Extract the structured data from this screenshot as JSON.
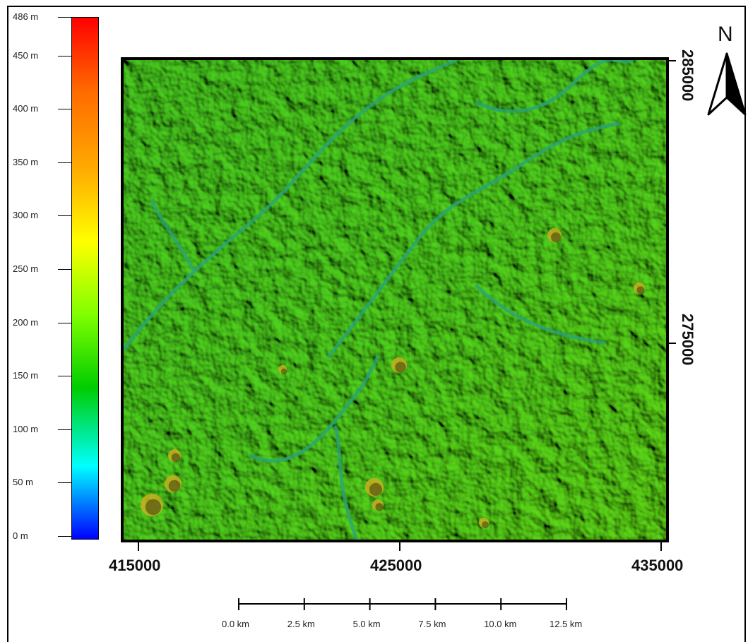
{
  "legend": {
    "labels": [
      "486 m",
      "450 m",
      "400 m",
      "350 m",
      "300 m",
      "250 m",
      "200 m",
      "150 m",
      "100 m",
      "50 m",
      "0 m"
    ],
    "colors": [
      "#ff0000",
      "#ff6a00",
      "#ffaa00",
      "#ffff00",
      "#80ff00",
      "#00cc00",
      "#00ffff",
      "#0000ff"
    ]
  },
  "axes": {
    "x_ticks": [
      "415000",
      "425000",
      "435000"
    ],
    "y_ticks": [
      "285000",
      "275000"
    ]
  },
  "north": {
    "label": "N"
  },
  "scale": {
    "labels": [
      "0.0 km",
      "2.5 km",
      "5.0 km",
      "7.5 km",
      "10.0 km",
      "12.5 km"
    ]
  },
  "map": {
    "base_color": "#3fbf1f",
    "river_color": "#2aa57a",
    "highlight_color": "#c8b020"
  }
}
